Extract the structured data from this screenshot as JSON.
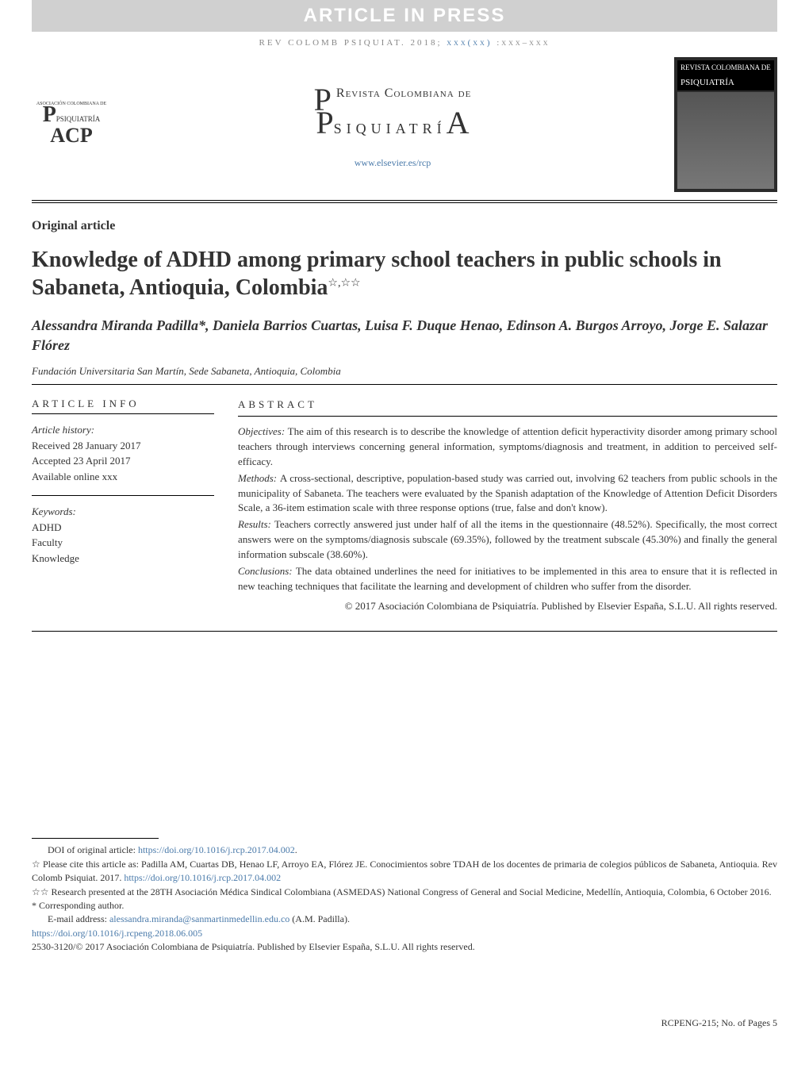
{
  "banner": "ARTICLE IN PRESS",
  "citation": {
    "prefix": "REV COLOMB PSIQUIAT. ",
    "year": "2018;",
    "vol": "xxx(xx)",
    "pages": ":xxx–xxx"
  },
  "logo_left": {
    "line1": "ASOCIACIÓN COLOMBIANA DE",
    "line2": "PSIQUIATRÍA",
    "line3": "ACP"
  },
  "journal": {
    "line1": "Revista Colombiana de",
    "line2_pre": "P",
    "line2_body": "siquiatrí",
    "line2_suf": "A",
    "url": "www.elsevier.es/rcp"
  },
  "cover_thumb": {
    "t1": "REVISTA COLOMBIANA DE",
    "t2": "PSIQUIATRÍA"
  },
  "section_label": "Original article",
  "title": "Knowledge of ADHD among primary school teachers in public schools in Sabaneta, Antioquia, Colombia",
  "title_markers": "☆,☆☆",
  "authors": "Alessandra Miranda Padilla*, Daniela Barrios Cuartas, Luisa F. Duque Henao, Edinson A. Burgos Arroyo, Jorge E. Salazar Flórez",
  "affiliation": "Fundación Universitaria San Martín, Sede Sabaneta, Antioquia, Colombia",
  "info_head": "ARTICLE INFO",
  "abs_head": "ABSTRACT",
  "history": {
    "label": "Article history:",
    "received": "Received 28 January 2017",
    "accepted": "Accepted 23 April 2017",
    "online": "Available online xxx"
  },
  "keywords": {
    "label": "Keywords:",
    "items": [
      "ADHD",
      "Faculty",
      "Knowledge"
    ]
  },
  "abstract": {
    "objectives_lbl": "Objectives: ",
    "objectives": "The aim of this research is to describe the knowledge of attention deficit hyperactivity disorder among primary school teachers through interviews concerning general information, symptoms/diagnosis and treatment, in addition to perceived self-efficacy.",
    "methods_lbl": "Methods: ",
    "methods": "A cross-sectional, descriptive, population-based study was carried out, involving 62 teachers from public schools in the municipality of Sabaneta. The teachers were evaluated by the Spanish adaptation of the Knowledge of Attention Deficit Disorders Scale, a 36-item estimation scale with three response options (true, false and don't know).",
    "results_lbl": "Results: ",
    "results": "Teachers correctly answered just under half of all the items in the questionnaire (48.52%). Specifically, the most correct answers were on the symptoms/diagnosis subscale (69.35%), followed by the treatment subscale (45.30%) and finally the general information subscale (38.60%).",
    "conclusions_lbl": "Conclusions: ",
    "conclusions": "The data obtained underlines the need for initiatives to be implemented in this area to ensure that it is reflected in new teaching techniques that facilitate the learning and development of children who suffer from the disorder.",
    "copyright": "© 2017 Asociación Colombiana de Psiquiatría. Published by Elsevier España, S.L.U. All rights reserved."
  },
  "footnotes": {
    "doi_orig_label": "DOI of original article: ",
    "doi_orig": "https://doi.org/10.1016/j.rcp.2017.04.002",
    "fn1_pre": "☆ Please cite this article as: Padilla AM, Cuartas DB, Henao LF, Arroyo EA, Flórez JE. Conocimientos sobre TDAH de los docentes de primaria de colegios públicos de Sabaneta, Antioquia. Rev Colomb Psiquiat. 2017. ",
    "fn1_link": "https://doi.org/10.1016/j.rcp.2017.04.002",
    "fn2": "☆☆ Research presented at the 28TH Asociación Médica Sindical Colombiana (ASMEDAS) National Congress of General and Social Medicine, Medellín, Antioquia, Colombia, 6 October 2016.",
    "corr_label": "* Corresponding author.",
    "email_label": "E-mail address: ",
    "email": "alessandra.miranda@sanmartinmedellin.edu.co",
    "email_suffix": " (A.M. Padilla).",
    "doi2": "https://doi.org/10.1016/j.rcpeng.2018.06.005",
    "copy": "2530-3120/© 2017 Asociación Colombiana de Psiquiatría. Published by Elsevier España, S.L.U. All rights reserved."
  },
  "bottom": "RCPENG-215;   No. of Pages 5",
  "colors": {
    "banner_bg": "#d0d0d0",
    "banner_fg": "#ffffff",
    "link": "#4a7aaa",
    "text": "#333333",
    "muted": "#888888"
  }
}
